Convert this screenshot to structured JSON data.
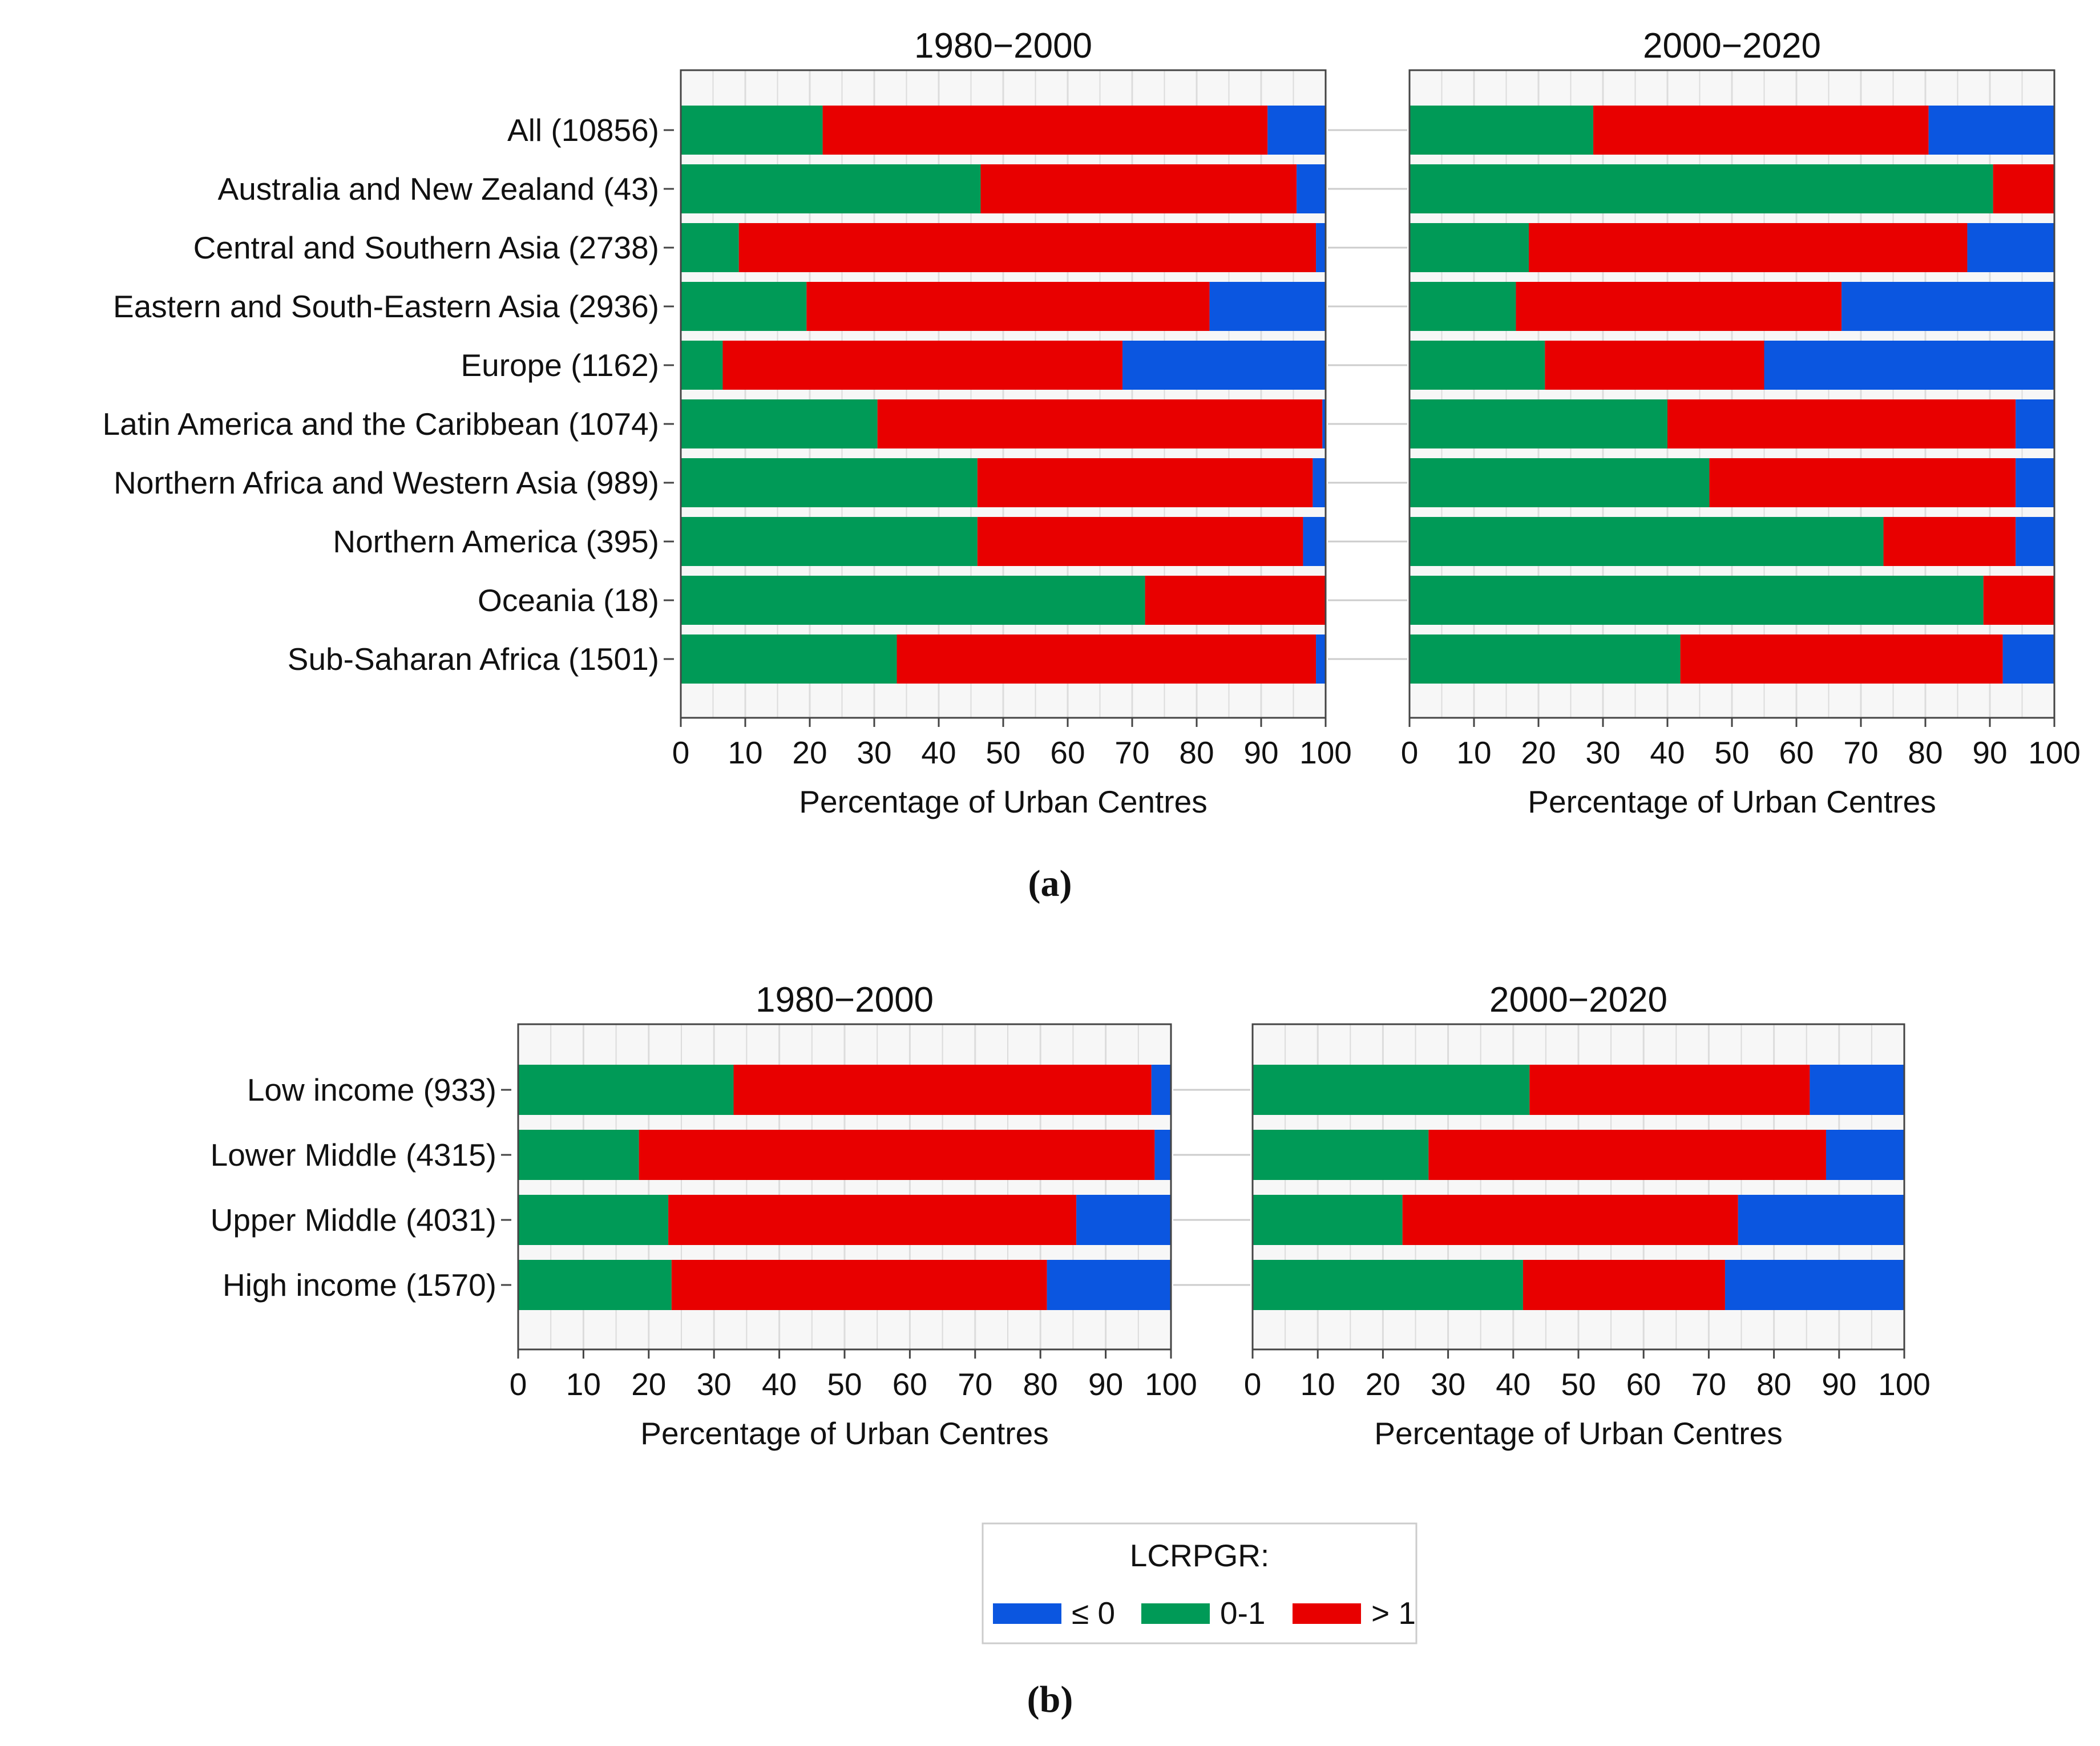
{
  "colors": {
    "green": "#009a57",
    "red": "#e80000",
    "blue": "#0b56e0",
    "frame": "#444444",
    "grid": "#dcdcdc",
    "panel_bg": "#f7f7f7"
  },
  "panel_labels": {
    "a": "(a)",
    "b": "(b)"
  },
  "legend": {
    "title": "LCRPGR:",
    "items": [
      {
        "label": "≤ 0",
        "color": "#0b56e0"
      },
      {
        "label": "0-1",
        "color": "#009a57"
      },
      {
        "label": "> 1",
        "color": "#e80000"
      }
    ]
  },
  "chart_data": [
    {
      "type": "bar",
      "orientation": "horizontal",
      "stacked": true,
      "figure": "a",
      "title": "1980−2000",
      "xlabel": "Percentage of Urban Centres",
      "ylabel": "",
      "xlim": [
        0,
        100
      ],
      "xticks": [
        "0",
        "10",
        "20",
        "30",
        "40",
        "50",
        "60",
        "70",
        "80",
        "90",
        "100"
      ],
      "categories": [
        "All (10856)",
        "Australia and New Zealand (43)",
        "Central and Southern Asia (2738)",
        "Eastern and South-Eastern Asia (2936)",
        "Europe (1162)",
        "Latin America and the Caribbean (1074)",
        "Northern Africa and Western Asia (989)",
        "Northern America (395)",
        "Oceania (18)",
        "Sub-Saharan Africa (1501)"
      ],
      "series": [
        {
          "name": "0-1",
          "values": [
            22,
            46.5,
            9,
            19.5,
            6.5,
            30.5,
            46,
            46,
            72,
            33.5
          ]
        },
        {
          "name": "> 1",
          "values": [
            69,
            49,
            89.5,
            62.5,
            62,
            69,
            52,
            50.5,
            28,
            65
          ]
        },
        {
          "name": "≤ 0",
          "values": [
            9,
            4.5,
            1.5,
            18,
            31.5,
            0.5,
            2,
            3.5,
            0,
            1.5
          ]
        }
      ]
    },
    {
      "type": "bar",
      "orientation": "horizontal",
      "stacked": true,
      "figure": "a",
      "title": "2000−2020",
      "xlabel": "Percentage of Urban Centres",
      "ylabel": "",
      "xlim": [
        0,
        100
      ],
      "xticks": [
        "0",
        "10",
        "20",
        "30",
        "40",
        "50",
        "60",
        "70",
        "80",
        "90",
        "100"
      ],
      "categories": [
        "All (10856)",
        "Australia and New Zealand (43)",
        "Central and Southern Asia (2738)",
        "Eastern and South-Eastern Asia (2936)",
        "Europe (1162)",
        "Latin America and the Caribbean (1074)",
        "Northern Africa and Western Asia (989)",
        "Northern America (395)",
        "Oceania (18)",
        "Sub-Saharan Africa (1501)"
      ],
      "series": [
        {
          "name": "0-1",
          "values": [
            28.5,
            90.5,
            18.5,
            16.5,
            21,
            40,
            46.5,
            73.5,
            89,
            42
          ]
        },
        {
          "name": "> 1",
          "values": [
            52,
            9.5,
            68,
            50.5,
            34,
            54,
            47.5,
            20.5,
            11,
            50
          ]
        },
        {
          "name": "≤ 0",
          "values": [
            19.5,
            0,
            13.5,
            33,
            45,
            6,
            6,
            6,
            0,
            8
          ]
        }
      ]
    },
    {
      "type": "bar",
      "orientation": "horizontal",
      "stacked": true,
      "figure": "b",
      "title": "1980−2000",
      "xlabel": "Percentage of Urban Centres",
      "ylabel": "",
      "xlim": [
        0,
        100
      ],
      "xticks": [
        "0",
        "10",
        "20",
        "30",
        "40",
        "50",
        "60",
        "70",
        "80",
        "90",
        "100"
      ],
      "categories": [
        "Low income (933)",
        "Lower Middle (4315)",
        "Upper Middle (4031)",
        "High income (1570)"
      ],
      "series": [
        {
          "name": "0-1",
          "values": [
            33,
            18.5,
            23,
            23.5
          ]
        },
        {
          "name": "> 1",
          "values": [
            64,
            79,
            62.5,
            57.5
          ]
        },
        {
          "name": "≤ 0",
          "values": [
            3,
            2.5,
            14.5,
            19
          ]
        }
      ]
    },
    {
      "type": "bar",
      "orientation": "horizontal",
      "stacked": true,
      "figure": "b",
      "title": "2000−2020",
      "xlabel": "Percentage of Urban Centres",
      "ylabel": "",
      "xlim": [
        0,
        100
      ],
      "xticks": [
        "0",
        "10",
        "20",
        "30",
        "40",
        "50",
        "60",
        "70",
        "80",
        "90",
        "100"
      ],
      "categories": [
        "Low income (933)",
        "Lower Middle (4315)",
        "Upper Middle (4031)",
        "High income (1570)"
      ],
      "series": [
        {
          "name": "0-1",
          "values": [
            42.5,
            27,
            23,
            41.5
          ]
        },
        {
          "name": "> 1",
          "values": [
            43,
            61,
            51.5,
            31
          ]
        },
        {
          "name": "≤ 0",
          "values": [
            14.5,
            12,
            25.5,
            27.5
          ]
        }
      ]
    }
  ]
}
